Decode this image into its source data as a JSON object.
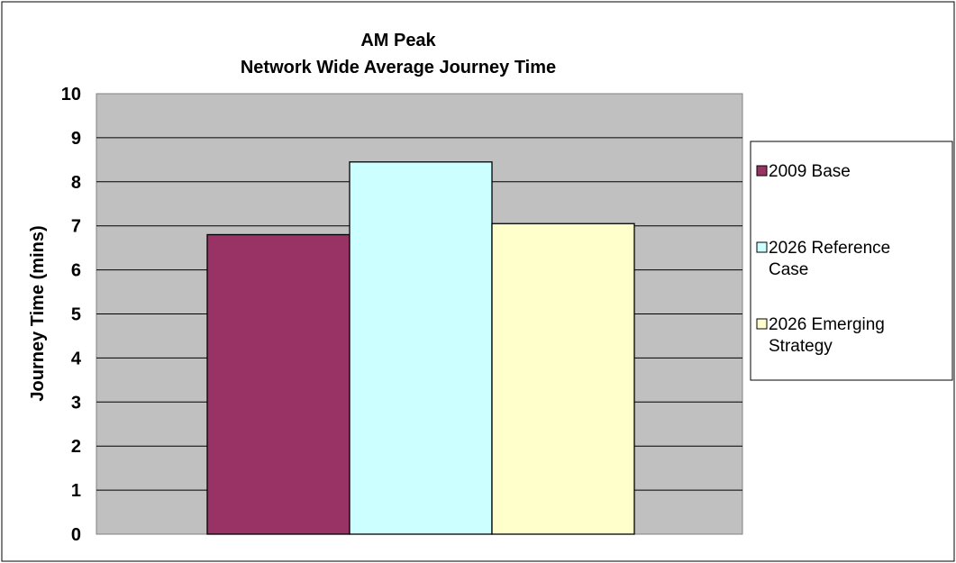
{
  "chart_data": {
    "type": "bar",
    "title": [
      "AM Peak",
      "Network Wide Average Journey Time"
    ],
    "xlabel": "",
    "ylabel": "Journey Time (mins)",
    "ylim": [
      0,
      10
    ],
    "yticks": [
      0,
      1,
      2,
      3,
      4,
      5,
      6,
      7,
      8,
      9,
      10
    ],
    "grid": true,
    "legend_position": "right",
    "plot_background": "#c0c0c0",
    "series": [
      {
        "name": "2009 Base",
        "legend_lines": [
          "2009 Base"
        ],
        "value": 6.8,
        "color": "#993366"
      },
      {
        "name": "2026 Reference Case",
        "legend_lines": [
          "2026 Reference",
          "Case"
        ],
        "value": 8.45,
        "color": "#ccffff"
      },
      {
        "name": "2026 Emerging Strategy",
        "legend_lines": [
          "2026 Emerging",
          "Strategy"
        ],
        "value": 7.05,
        "color": "#ffffcc"
      }
    ]
  }
}
